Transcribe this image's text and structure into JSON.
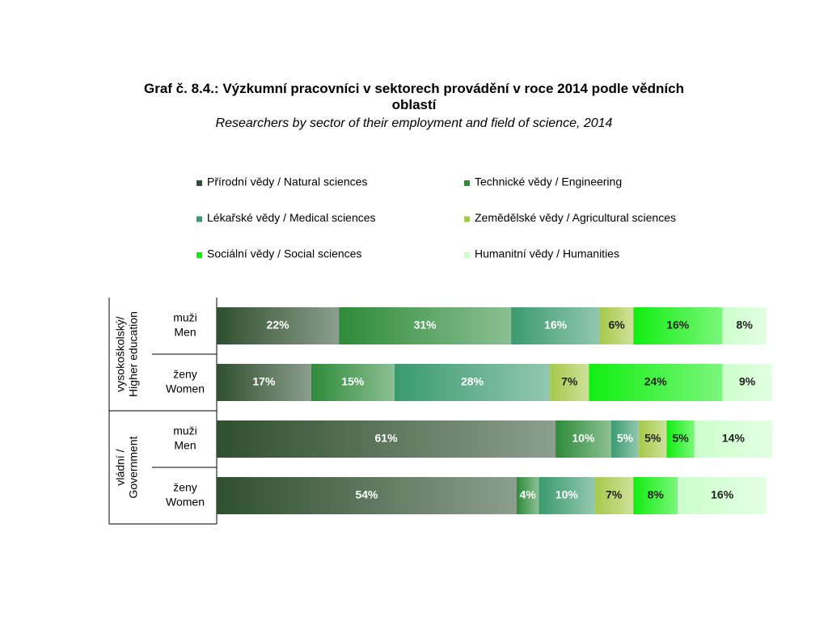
{
  "chart_data": {
    "type": "stacked_barh",
    "title": "Graf č. 8.4.: Výzkumní pracovníci v sektorech provádění v roce 2014 podle vědních oblastí",
    "subtitle": "Researchers by sector of their employment and field of science, 2014",
    "groups": [
      [
        "vysokoškolský/",
        "Higher education"
      ],
      [
        "vládní /",
        "Government"
      ]
    ],
    "categories": [
      [
        "muži",
        "Men"
      ],
      [
        "ženy",
        "Women"
      ],
      [
        "muži",
        "Men"
      ],
      [
        "ženy",
        "Women"
      ]
    ],
    "xlim": [
      0,
      100
    ],
    "legend": "top",
    "series": [
      {
        "name": "Přírodní vědy  / Natural sciences",
        "color": "#2f4f2f",
        "label_color": "#ffffff",
        "values": [
          22,
          17,
          61,
          54
        ],
        "value_labels": [
          "22%",
          "17%",
          "61%",
          "54%"
        ]
      },
      {
        "name": "Technické vědy  / Engineering",
        "color": "#2e8b3a",
        "label_color": "#ffffff",
        "values": [
          31,
          15,
          10,
          4
        ],
        "value_labels": [
          "31%",
          "15%",
          "10%",
          "4%"
        ]
      },
      {
        "name": "Lékařské vědy  / Medical sciences",
        "color": "#3a9a6e",
        "label_color": "#ffffff",
        "values": [
          16,
          28,
          5,
          10
        ],
        "value_labels": [
          "16%",
          "28%",
          "5%",
          "10%"
        ]
      },
      {
        "name": "Zemědělské vědy / Agricultural  sciences",
        "color": "#a6c94a",
        "label_color": "#222222",
        "values": [
          6,
          7,
          5,
          7
        ],
        "value_labels": [
          "6%",
          "7%",
          "5%",
          "7%"
        ]
      },
      {
        "name": "Sociální vědy / Social sciences",
        "color": "#11ee11",
        "label_color": "#222222",
        "values": [
          16,
          24,
          5,
          8
        ],
        "value_labels": [
          "16%",
          "24%",
          "5%",
          "8%"
        ]
      },
      {
        "name": "Humanitní vědy / Humanities",
        "color": "#ccffcc",
        "label_color": "#222222",
        "values": [
          8,
          9,
          14,
          16
        ],
        "value_labels": [
          "8%",
          "9%",
          "14%",
          "16%"
        ]
      }
    ]
  }
}
